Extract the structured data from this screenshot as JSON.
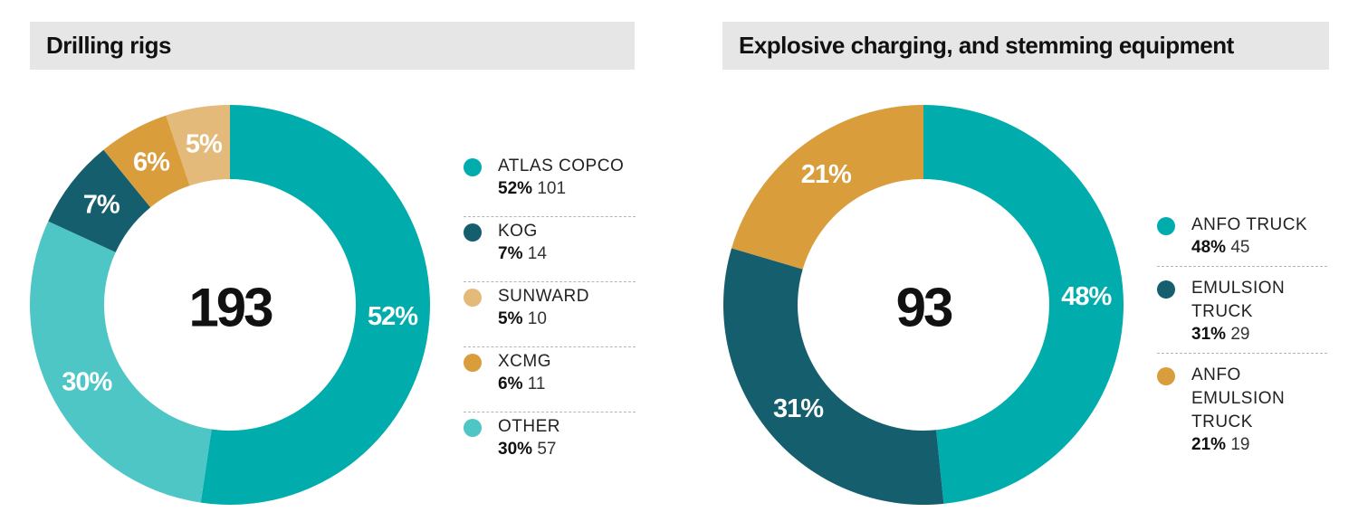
{
  "chart_data": [
    {
      "type": "pie",
      "title": "Drilling rigs",
      "total": "193",
      "categories": [
        "ATLAS COPCO",
        "KOG",
        "SUNWARD",
        "XCMG",
        "OTHER"
      ],
      "values": [
        101,
        14,
        10,
        11,
        57
      ],
      "percent_labels": [
        "52%",
        "7%",
        "5%",
        "6%",
        "30%"
      ],
      "colors": [
        "#00adac",
        "#155e6d",
        "#e3ba79",
        "#d99d3c",
        "#4fc6c6"
      ],
      "slice_order": [
        0,
        4,
        1,
        3,
        2
      ],
      "legend": [
        {
          "name": "ATLAS COPCO",
          "pct": "52%",
          "count": "101",
          "color": "#00adac"
        },
        {
          "name": "KOG",
          "pct": "7%",
          "count": "14",
          "color": "#155e6d"
        },
        {
          "name": "SUNWARD",
          "pct": "5%",
          "count": "10",
          "color": "#e3ba79"
        },
        {
          "name": "XCMG",
          "pct": "6%",
          "count": "11",
          "color": "#d99d3c"
        },
        {
          "name": "OTHER",
          "pct": "30%",
          "count": "57",
          "color": "#4fc6c6"
        }
      ],
      "legend_placement": "right"
    },
    {
      "type": "pie",
      "title": "Explosive charging, and stemming equipment",
      "total": "93",
      "categories": [
        "ANFO TRUCK",
        "EMULSION TRUCK",
        "ANFO EMULSION TRUCK"
      ],
      "values": [
        45,
        29,
        19
      ],
      "percent_labels": [
        "48%",
        "31%",
        "21%"
      ],
      "colors": [
        "#00adac",
        "#155e6d",
        "#d99d3c"
      ],
      "slice_order": [
        0,
        1,
        2
      ],
      "legend": [
        {
          "name": "ANFO TRUCK",
          "pct": "48%",
          "count": "45",
          "color": "#00adac"
        },
        {
          "name": "EMULSION TRUCK",
          "pct": "31%",
          "count": "29",
          "color": "#155e6d"
        },
        {
          "name": "ANFO EMULSION TRUCK",
          "pct": "21%",
          "count": "19",
          "color": "#d99d3c"
        }
      ],
      "legend_placement": "right"
    }
  ]
}
